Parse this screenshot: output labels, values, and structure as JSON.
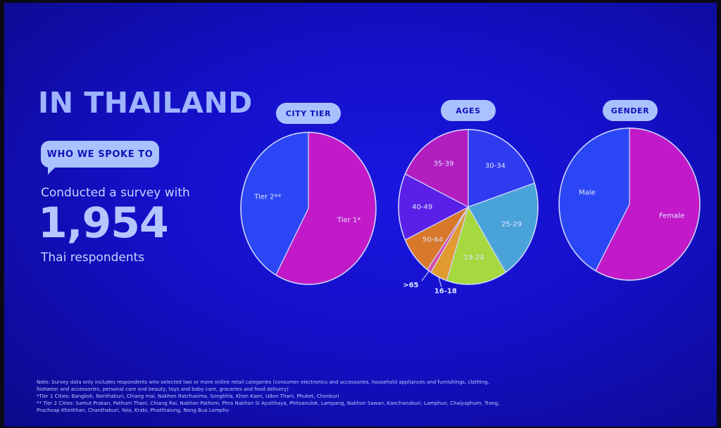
{
  "headline": "IN THAILAND",
  "who_we_spoke_to": "WHO WE SPOKE TO",
  "survey": {
    "intro": "Conducted a survey with",
    "count": "1,954",
    "outro": "Thai respondents"
  },
  "chart_data": [
    {
      "type": "pie",
      "title": "CITY TIER",
      "categories": [
        "Tier 1*",
        "Tier 2**"
      ],
      "values": [
        58,
        42
      ],
      "colors": [
        "#c21ac8",
        "#2b47f5"
      ]
    },
    {
      "type": "pie",
      "title": "AGES",
      "categories": [
        "30-34",
        "25-29",
        "19-24",
        "16-18",
        ">65",
        "50-64",
        "40-49",
        "35-39"
      ],
      "values": [
        20,
        21,
        14,
        4,
        1,
        8,
        14,
        18
      ],
      "colors": [
        "#2e3bf0",
        "#4aa3d8",
        "#a6d840",
        "#e09a30",
        "#d84aa8",
        "#d8782a",
        "#5a20e8",
        "#b21ec0"
      ]
    },
    {
      "type": "pie",
      "title": "GENDER",
      "categories": [
        "Female",
        "Male"
      ],
      "values": [
        58,
        42
      ],
      "colors": [
        "#c21ac8",
        "#2b47f5"
      ]
    }
  ],
  "notes": [
    "Note: Survey data only includes respondents who selected two or more online retail categories (consumer electronics and accessories, household appliances and furnishings, clothing, footwear and accessories, personal care and beauty, toys and baby care, groceries and food delivery)",
    "*Tier 1 Cities: Bangkok, Nonthaburi, Chiang mai, Nakhon Ratchasima, Songkhla, Khon Kaen, Udon Thani, Phuket, Chonburi",
    "** Tier 2 Cities: Samut Prakan, Pathum Thani, Chiang Rai, Nakhon Pathom, Phra Nakhon Si Ayutthaya, Phitsanulok, Lampang, Nakhon Sawan, Kanchanaburi, Lamphun, Chaiyaphum, Trang, Prachuap KhiriKhan, Chanthaburi, Yala, Krabi, Phatthalung, Nong Bua Lamphu"
  ]
}
